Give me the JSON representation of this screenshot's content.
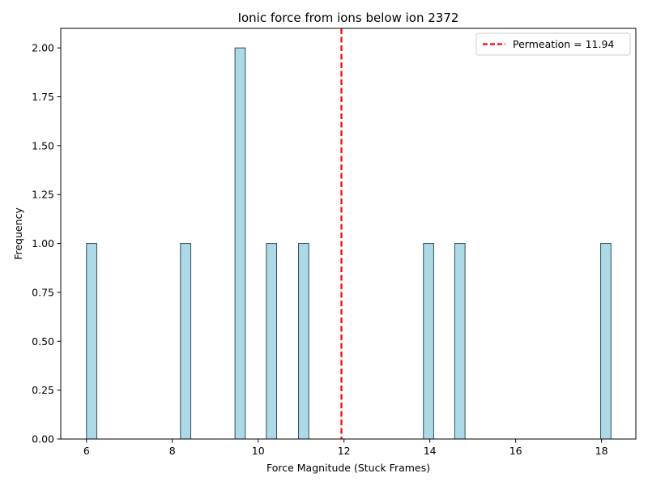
{
  "chart_data": {
    "type": "bar",
    "title": "Ionic force from ions below ion 2372",
    "xlabel": "Force Magnitude (Stuck Frames)",
    "ylabel": "Frequency",
    "xlim": [
      5.4,
      18.8
    ],
    "ylim": [
      0,
      2.1
    ],
    "xticks": [
      6,
      8,
      10,
      12,
      14,
      16,
      18
    ],
    "yticks": [
      "0.00",
      "0.25",
      "0.50",
      "0.75",
      "1.00",
      "1.25",
      "1.50",
      "1.75",
      "2.00"
    ],
    "grid": false,
    "legend_position": "top-right",
    "bar_color": "#add8e6",
    "bar_edge_color": "#2f4f5f",
    "bins": [
      {
        "x0": 6.0,
        "x1": 6.24,
        "count": 1
      },
      {
        "x0": 8.19,
        "x1": 8.43,
        "count": 1
      },
      {
        "x0": 9.46,
        "x1": 9.7,
        "count": 2
      },
      {
        "x0": 10.19,
        "x1": 10.43,
        "count": 1
      },
      {
        "x0": 10.94,
        "x1": 11.18,
        "count": 1
      },
      {
        "x0": 13.85,
        "x1": 14.09,
        "count": 1
      },
      {
        "x0": 14.58,
        "x1": 14.82,
        "count": 1
      },
      {
        "x0": 17.98,
        "x1": 18.22,
        "count": 1
      }
    ],
    "reference_line": {
      "x": 11.94,
      "label": "Permeation = 11.94",
      "color": "#ff0000",
      "style": "dashed"
    }
  }
}
